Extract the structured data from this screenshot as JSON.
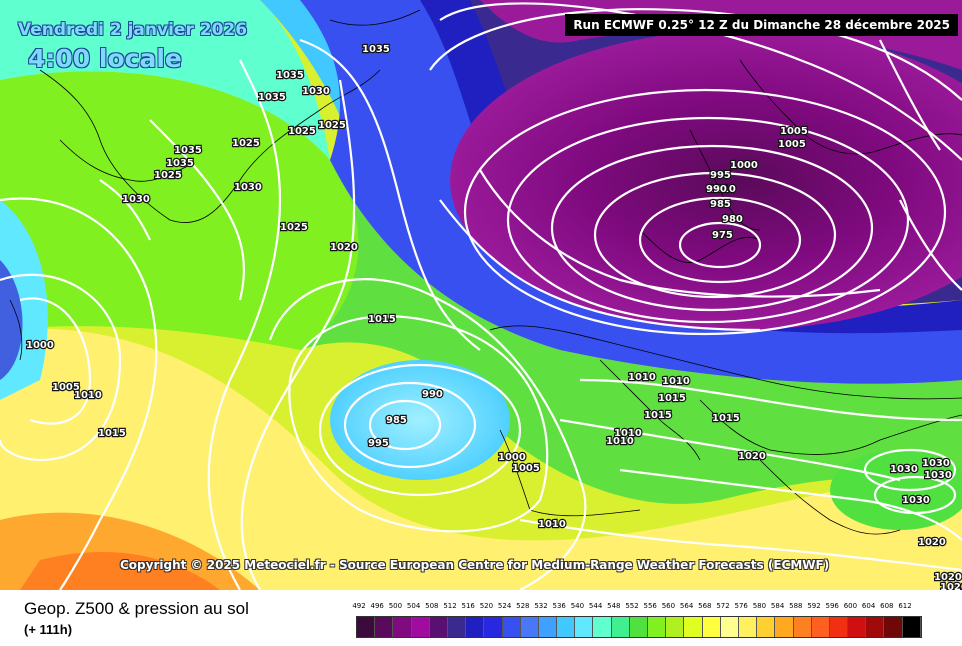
{
  "map": {
    "date_label": "Vendredi 2 janvier 2026",
    "time_label": "4:00 locale",
    "run_label": "Run ECMWF 0.25° 12 Z du Dimanche 28 décembre 2025",
    "copyright": "Copyright © 2025 Meteociel.fr - Source European Centre for Medium-Range Weather Forecasts (ECMWF)",
    "isobar_labels": [
      "1035",
      "1035",
      "1035",
      "1030",
      "1025",
      "1025",
      "1035",
      "1035",
      "1025",
      "1025",
      "1030",
      "1030",
      "1025",
      "1020",
      "1015",
      "1000",
      "1005",
      "1010",
      "1015",
      "990",
      "985",
      "995",
      "1000",
      "1005",
      "1010",
      "1010",
      "1010",
      "1010",
      "1015",
      "1015",
      "1010",
      "1015",
      "1020",
      "1010",
      "1005",
      "1005",
      "1000",
      "995",
      "990",
      "985",
      "980",
      "975",
      "1030",
      "1030",
      "1030",
      "1030",
      "1020",
      "1020",
      "1020"
    ]
  },
  "footer": {
    "title": "Geop. Z500 & pression au sol",
    "subtitle": "(+ 111h)"
  },
  "legend": {
    "labels": [
      "492",
      "496",
      "500",
      "504",
      "508",
      "512",
      "516",
      "520",
      "524",
      "528",
      "532",
      "536",
      "540",
      "544",
      "548",
      "552",
      "556",
      "560",
      "564",
      "568",
      "572",
      "576",
      "580",
      "584",
      "588",
      "592",
      "596",
      "600",
      "604",
      "608",
      "612"
    ],
    "colors": [
      "#3d0a3d",
      "#5a0a5a",
      "#800a80",
      "#a00ca0",
      "#5a1070",
      "#3a2a90",
      "#2020c0",
      "#2828e0",
      "#3850f0",
      "#4878f8",
      "#40a0ff",
      "#40c8ff",
      "#60e8ff",
      "#60ffd0",
      "#40f090",
      "#50e040",
      "#80f020",
      "#b0f020",
      "#e0ff20",
      "#ffff40",
      "#ffff90",
      "#fff060",
      "#ffd030",
      "#ffa820",
      "#ff8020",
      "#ff6020",
      "#f03010",
      "#d01010",
      "#a00a0a",
      "#700808",
      "#000000"
    ]
  }
}
